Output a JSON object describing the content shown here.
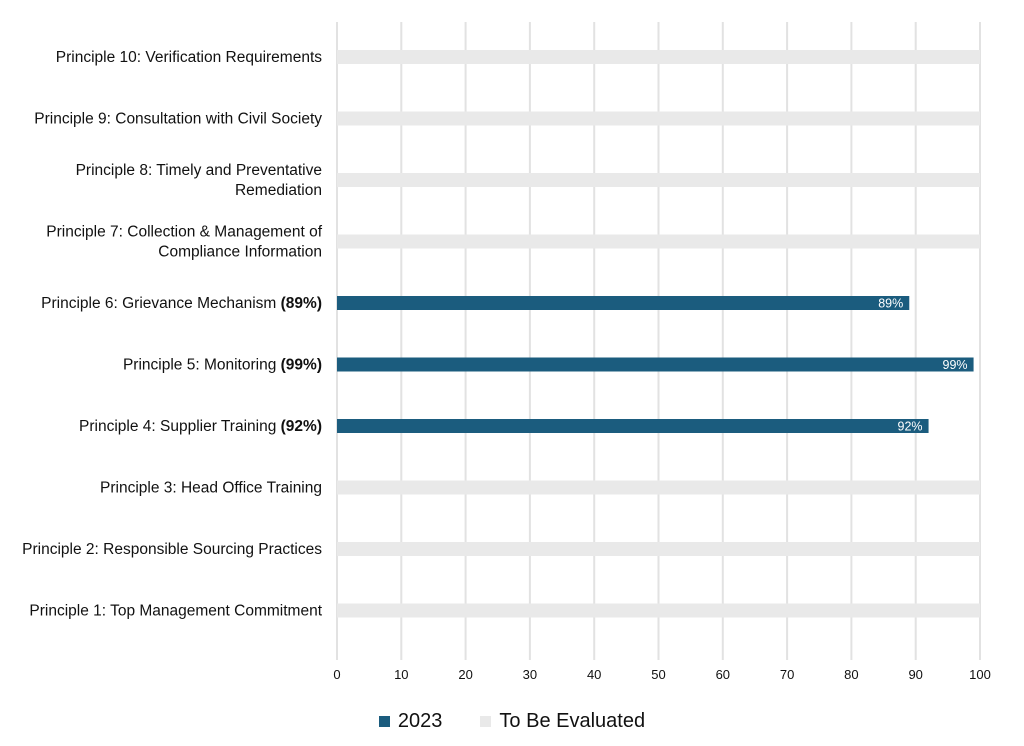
{
  "colors": {
    "series_2023": "#1b5c7e",
    "to_be_evaluated": "#e9e9e9",
    "gridline": "#e2e2e2"
  },
  "chart_data": {
    "type": "bar",
    "orientation": "horizontal",
    "categories": [
      {
        "label": "Principle 10: Verification Requirements",
        "pct": ""
      },
      {
        "label": "Principle 9: Consultation with Civil Society",
        "pct": ""
      },
      {
        "label": "Principle 8: Timely and Preventative Remediation",
        "pct": ""
      },
      {
        "label": "Principle 7: Collection & Management of Compliance Information",
        "pct": ""
      },
      {
        "label": "Principle 6: Grievance Mechanism ",
        "pct": "(89%)"
      },
      {
        "label": "Principle 5: Monitoring ",
        "pct": "(99%)"
      },
      {
        "label": "Principle 4: Supplier Training ",
        "pct": "(92%)"
      },
      {
        "label": "Principle 3: Head Office Training",
        "pct": ""
      },
      {
        "label": "Principle 2: Responsible Sourcing Practices",
        "pct": ""
      },
      {
        "label": "Principle 1: Top Management Commitment",
        "pct": ""
      }
    ],
    "series": [
      {
        "name": "2023",
        "values": [
          null,
          null,
          null,
          null,
          89,
          99,
          92,
          null,
          null,
          null
        ],
        "data_labels": [
          "",
          "",
          "",
          "",
          "89%",
          "99%",
          "92%",
          "",
          "",
          ""
        ]
      },
      {
        "name": "To Be Evaluated",
        "values": [
          100,
          100,
          100,
          100,
          null,
          null,
          null,
          100,
          100,
          100
        ]
      }
    ],
    "xlim": [
      0,
      100
    ],
    "xticks": [
      "0",
      "10",
      "20",
      "30",
      "40",
      "50",
      "60",
      "70",
      "80",
      "90",
      "100"
    ],
    "grid": "vertical",
    "legend_position": "bottom-center"
  },
  "legend": {
    "items": [
      {
        "label": "2023"
      },
      {
        "label": "To Be Evaluated"
      }
    ]
  }
}
